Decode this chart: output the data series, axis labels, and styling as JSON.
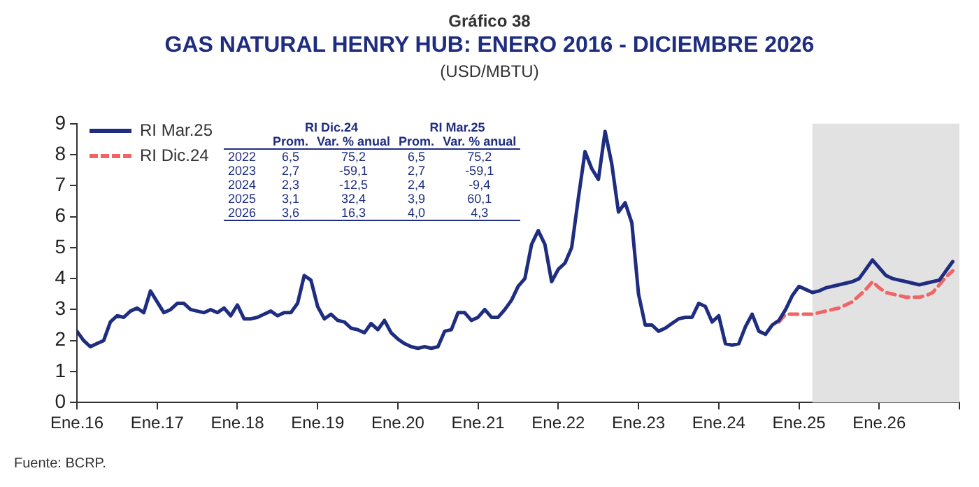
{
  "chart_data": {
    "type": "line",
    "title": "GAS NATURAL HENRY HUB: ENERO 2016 - DICIEMBRE 2026",
    "subtitle": "(USD/MBTU)",
    "annotations": [
      "Gráfico 38",
      "Fuente: BCRP.",
      "\tRI Dic.24\tRI Mar.25",
      "\tProm.\tVar. % anual\tProm.\tVar. % anual",
      "2022\t6,5\t75,2\t6,5\t75,2",
      "2023\t2,7\t-59,1\t2,7\t-59,1",
      "2024\t2,3\t-12,5\t2,4\t-9,4",
      "2025\t3,1\t32,4\t3,9\t60,1",
      "2026\t3,6\t16,3\t4,0\t4,3"
    ],
    "x": [
      "2016-01",
      "2016-02",
      "2016-03",
      "2016-04",
      "2016-05",
      "2016-06",
      "2016-07",
      "2016-08",
      "2016-09",
      "2016-10",
      "2016-11",
      "2016-12",
      "2017-01",
      "2017-02",
      "2017-03",
      "2017-04",
      "2017-05",
      "2017-06",
      "2017-07",
      "2017-08",
      "2017-09",
      "2017-10",
      "2017-11",
      "2017-12",
      "2018-01",
      "2018-02",
      "2018-03",
      "2018-04",
      "2018-05",
      "2018-06",
      "2018-07",
      "2018-08",
      "2018-09",
      "2018-10",
      "2018-11",
      "2018-12",
      "2019-01",
      "2019-02",
      "2019-03",
      "2019-04",
      "2019-05",
      "2019-06",
      "2019-07",
      "2019-08",
      "2019-09",
      "2019-10",
      "2019-11",
      "2019-12",
      "2020-01",
      "2020-02",
      "2020-03",
      "2020-04",
      "2020-05",
      "2020-06",
      "2020-07",
      "2020-08",
      "2020-09",
      "2020-10",
      "2020-11",
      "2020-12",
      "2021-01",
      "2021-02",
      "2021-03",
      "2021-04",
      "2021-05",
      "2021-06",
      "2021-07",
      "2021-08",
      "2021-09",
      "2021-10",
      "2021-11",
      "2021-12",
      "2022-01",
      "2022-02",
      "2022-03",
      "2022-04",
      "2022-05",
      "2022-06",
      "2022-07",
      "2022-08",
      "2022-09",
      "2022-10",
      "2022-11",
      "2022-12",
      "2023-01",
      "2023-02",
      "2023-03",
      "2023-04",
      "2023-05",
      "2023-06",
      "2023-07",
      "2023-08",
      "2023-09",
      "2023-10",
      "2023-11",
      "2023-12",
      "2024-01",
      "2024-02",
      "2024-03",
      "2024-04",
      "2024-05",
      "2024-06",
      "2024-07",
      "2024-08",
      "2024-09",
      "2024-10",
      "2024-11",
      "2024-12",
      "2025-01",
      "2025-02",
      "2025-03",
      "2025-04",
      "2025-05",
      "2025-06",
      "2025-07",
      "2025-08",
      "2025-09",
      "2025-10",
      "2025-11",
      "2025-12",
      "2026-01",
      "2026-02",
      "2026-03",
      "2026-04",
      "2026-05",
      "2026-06",
      "2026-07",
      "2026-08",
      "2026-09",
      "2026-10",
      "2026-11",
      "2026-12"
    ],
    "series": [
      {
        "name": "RI Mar.25",
        "color": "#1f2d80",
        "line_style": "solid",
        "values": [
          2.3,
          2.0,
          1.8,
          1.9,
          2.0,
          2.6,
          2.8,
          2.75,
          2.95,
          3.05,
          2.9,
          3.6,
          3.25,
          2.9,
          3.0,
          3.2,
          3.2,
          3.0,
          2.95,
          2.9,
          3.0,
          2.9,
          3.05,
          2.8,
          3.15,
          2.7,
          2.7,
          2.75,
          2.85,
          2.95,
          2.8,
          2.9,
          2.9,
          3.2,
          4.1,
          3.95,
          3.1,
          2.7,
          2.85,
          2.65,
          2.6,
          2.4,
          2.35,
          2.25,
          2.55,
          2.35,
          2.65,
          2.25,
          2.05,
          1.9,
          1.8,
          1.75,
          1.8,
          1.75,
          1.8,
          2.3,
          2.35,
          2.9,
          2.9,
          2.65,
          2.75,
          3.0,
          2.75,
          2.75,
          3.0,
          3.3,
          3.75,
          4.0,
          5.1,
          5.55,
          5.1,
          3.9,
          4.3,
          4.5,
          5.0,
          6.6,
          8.1,
          7.55,
          7.2,
          8.75,
          7.7,
          6.15,
          6.45,
          5.8,
          3.5,
          2.5,
          2.5,
          2.3,
          2.4,
          2.55,
          2.7,
          2.75,
          2.75,
          3.2,
          3.1,
          2.6,
          2.8,
          1.9,
          1.85,
          1.9,
          2.45,
          2.85,
          2.3,
          2.2,
          2.5,
          2.65,
          3.0,
          3.45,
          3.75,
          3.65,
          3.55,
          3.6,
          3.7,
          3.75,
          3.8,
          3.85,
          3.9,
          4.0,
          4.3,
          4.6,
          4.35,
          4.1,
          4.0,
          3.95,
          3.9,
          3.85,
          3.8,
          3.85,
          3.9,
          3.95,
          4.25,
          4.55
        ]
      },
      {
        "name": "RI Dic.24",
        "color": "#f06464",
        "line_style": "dashed",
        "x": [
          "2024-10",
          "2024-11",
          "2024-12",
          "2025-01",
          "2025-02",
          "2025-03",
          "2025-04",
          "2025-05",
          "2025-06",
          "2025-07",
          "2025-08",
          "2025-09",
          "2025-10",
          "2025-11",
          "2025-12",
          "2026-01",
          "2026-02",
          "2026-03",
          "2026-04",
          "2026-05",
          "2026-06",
          "2026-07",
          "2026-08",
          "2026-09",
          "2026-10",
          "2026-11",
          "2026-12"
        ],
        "values": [
          2.6,
          2.85,
          2.85,
          2.85,
          2.85,
          2.85,
          2.9,
          2.95,
          3.0,
          3.05,
          3.15,
          3.25,
          3.45,
          3.65,
          3.9,
          3.7,
          3.55,
          3.5,
          3.45,
          3.4,
          3.4,
          3.4,
          3.45,
          3.55,
          3.8,
          4.05,
          4.25
        ]
      }
    ],
    "xlim": [
      "2016-01",
      "2027-01"
    ],
    "xticks": [
      {
        "value": "2016-01",
        "label": "Ene.16"
      },
      {
        "value": "2017-01",
        "label": "Ene.17"
      },
      {
        "value": "2018-01",
        "label": "Ene.18"
      },
      {
        "value": "2019-01",
        "label": "Ene.19"
      },
      {
        "value": "2020-01",
        "label": "Ene.20"
      },
      {
        "value": "2021-01",
        "label": "Ene.21"
      },
      {
        "value": "2022-01",
        "label": "Ene.22"
      },
      {
        "value": "2023-01",
        "label": "Ene.23"
      },
      {
        "value": "2024-01",
        "label": "Ene.24"
      },
      {
        "value": "2025-01",
        "label": "Ene.25"
      },
      {
        "value": "2026-01",
        "label": "Ene.26"
      },
      {
        "value": "2027-01",
        "label": null
      }
    ],
    "ylim": [
      0,
      9
    ],
    "yticks": [
      0,
      1,
      2,
      3,
      4,
      5,
      6,
      7,
      8,
      9
    ],
    "bands": [
      {
        "axis": "x",
        "from": "2025-03",
        "to": "2027-01",
        "color": "#e2e2e2"
      }
    ],
    "grid": false,
    "legend": "top left",
    "marker": "none"
  }
}
